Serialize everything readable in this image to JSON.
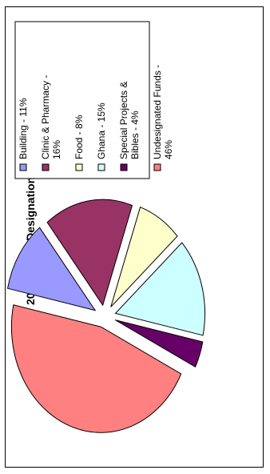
{
  "chart_data": {
    "type": "pie",
    "title": "2007 Donor Designations",
    "slices": [
      {
        "name": "Building",
        "value": 11,
        "color": "#9999FF",
        "legend_lines": [
          "Building - 11%"
        ]
      },
      {
        "name": "Clinic & Pharmacy",
        "value": 16,
        "color": "#993366",
        "legend_lines": [
          "Clinic & Pharmacy -",
          "16%"
        ]
      },
      {
        "name": "Food",
        "value": 8,
        "color": "#FFFFCC",
        "legend_lines": [
          "Food - 8%"
        ]
      },
      {
        "name": "Ghana",
        "value": 15,
        "color": "#CCFFFF",
        "legend_lines": [
          "Ghana  - 15%"
        ]
      },
      {
        "name": "Special Projects & Bibles",
        "value": 4,
        "color": "#660066",
        "legend_lines": [
          "Special Projects &",
          "Bibles - 4%"
        ]
      },
      {
        "name": "Undesignated Funds",
        "value": 46,
        "color": "#FF8080",
        "legend_lines": [
          "Undesignated Funds -",
          "46%"
        ]
      }
    ],
    "exploded": true,
    "legend_position": "right",
    "orientation": "rotated 90° counter-clockwise"
  }
}
